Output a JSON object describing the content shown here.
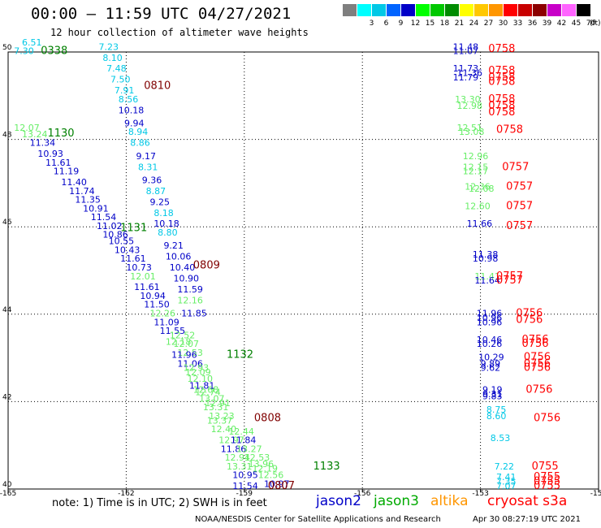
{
  "header": {
    "title": "00:00 – 11:59 UTC 04/27/2021",
    "subtitle": "12 hour collection of altimeter wave heights"
  },
  "colorbar": {
    "cells": [
      {
        "color": "#7f7f7f",
        "label": ""
      },
      {
        "color": "#00ffff",
        "label": "3"
      },
      {
        "color": "#00c8e6",
        "label": "6"
      },
      {
        "color": "#0064ff",
        "label": "9"
      },
      {
        "color": "#0000c8",
        "label": "12"
      },
      {
        "color": "#00ff00",
        "label": "15"
      },
      {
        "color": "#00c800",
        "label": "18"
      },
      {
        "color": "#008c00",
        "label": "21"
      },
      {
        "color": "#ffff00",
        "label": "24"
      },
      {
        "color": "#ffc800",
        "label": "27"
      },
      {
        "color": "#ff9600",
        "label": "30"
      },
      {
        "color": "#ff0000",
        "label": "33"
      },
      {
        "color": "#c80000",
        "label": "36"
      },
      {
        "color": "#8c0000",
        "label": "39"
      },
      {
        "color": "#c800c8",
        "label": "42"
      },
      {
        "color": "#ff64ff",
        "label": "45"
      },
      {
        "color": "#000000",
        "label": "70"
      }
    ],
    "unit": "(ft)"
  },
  "axes": {
    "x_ticks": [
      "-165",
      "-162",
      "-159",
      "-156",
      "-153",
      "-150"
    ],
    "y_ticks": [
      "50",
      "48",
      "46",
      "44",
      "42",
      "40"
    ],
    "x_range": [
      -165,
      -150
    ],
    "y_range": [
      40,
      50
    ]
  },
  "colors": {
    "c1": "#0000c8",
    "c2": "#00c8e6",
    "c3": "#66ee66",
    "time_green": "#008000",
    "time_dkred": "#800000",
    "time_red": "#ff0000"
  },
  "time_labels": [
    {
      "text": "0338",
      "lon": -164.17,
      "lat": 49.95,
      "color": "#008000"
    },
    {
      "text": "0810",
      "lon": -161.55,
      "lat": 49.15,
      "color": "#800000"
    },
    {
      "text": "1130",
      "lon": -164.0,
      "lat": 48.07,
      "color": "#008000"
    },
    {
      "text": "1131",
      "lon": -162.15,
      "lat": 45.9,
      "color": "#008000"
    },
    {
      "text": "0809",
      "lon": -160.3,
      "lat": 45.05,
      "color": "#800000"
    },
    {
      "text": "1132",
      "lon": -159.45,
      "lat": 43.0,
      "color": "#008000"
    },
    {
      "text": "0808",
      "lon": -158.75,
      "lat": 41.55,
      "color": "#800000"
    },
    {
      "text": "1133",
      "lon": -157.25,
      "lat": 40.45,
      "color": "#008000"
    },
    {
      "text": "0807",
      "lon": -158.4,
      "lat": 40.0,
      "color": "#800000"
    },
    {
      "text": "0758",
      "lon": -152.8,
      "lat": 50.0,
      "color": "#ff0000"
    },
    {
      "text": "0758",
      "lon": -152.8,
      "lat": 49.5,
      "color": "#ff0000"
    },
    {
      "text": "0758",
      "lon": -152.8,
      "lat": 49.35,
      "color": "#ff0000"
    },
    {
      "text": "0758",
      "lon": -152.8,
      "lat": 49.25,
      "color": "#ff0000"
    },
    {
      "text": "0758",
      "lon": -152.8,
      "lat": 48.85,
      "color": "#ff0000"
    },
    {
      "text": "0758",
      "lon": -152.8,
      "lat": 48.7,
      "color": "#ff0000"
    },
    {
      "text": "0758",
      "lon": -152.8,
      "lat": 48.55,
      "color": "#ff0000"
    },
    {
      "text": "0758",
      "lon": -152.6,
      "lat": 48.15,
      "color": "#ff0000"
    },
    {
      "text": "0757",
      "lon": -152.45,
      "lat": 47.3,
      "color": "#ff0000"
    },
    {
      "text": "0757",
      "lon": -152.35,
      "lat": 46.85,
      "color": "#ff0000"
    },
    {
      "text": "0757",
      "lon": -152.35,
      "lat": 46.4,
      "color": "#ff0000"
    },
    {
      "text": "0757",
      "lon": -152.35,
      "lat": 45.95,
      "color": "#ff0000"
    },
    {
      "text": "0757",
      "lon": -152.6,
      "lat": 44.8,
      "color": "#ff0000"
    },
    {
      "text": "0757",
      "lon": -152.6,
      "lat": 44.7,
      "color": "#ff0000"
    },
    {
      "text": "0756",
      "lon": -152.1,
      "lat": 43.95,
      "color": "#ff0000"
    },
    {
      "text": "0756",
      "lon": -152.1,
      "lat": 43.8,
      "color": "#ff0000"
    },
    {
      "text": "0756",
      "lon": -151.95,
      "lat": 43.35,
      "color": "#ff0000"
    },
    {
      "text": "0756",
      "lon": -151.95,
      "lat": 43.25,
      "color": "#ff0000"
    },
    {
      "text": "0756",
      "lon": -151.9,
      "lat": 42.95,
      "color": "#ff0000"
    },
    {
      "text": "0756",
      "lon": -151.9,
      "lat": 42.8,
      "color": "#ff0000"
    },
    {
      "text": "0756",
      "lon": -151.9,
      "lat": 42.7,
      "color": "#ff0000"
    },
    {
      "text": "0756",
      "lon": -151.85,
      "lat": 42.2,
      "color": "#ff0000"
    },
    {
      "text": "0756",
      "lon": -151.65,
      "lat": 41.55,
      "color": "#ff0000"
    },
    {
      "text": "0755",
      "lon": -151.7,
      "lat": 40.45,
      "color": "#ff0000"
    },
    {
      "text": "0755",
      "lon": -151.65,
      "lat": 40.2,
      "color": "#ff0000"
    },
    {
      "text": "0755",
      "lon": -151.65,
      "lat": 40.1,
      "color": "#ff0000"
    },
    {
      "text": "0755",
      "lon": -151.65,
      "lat": 40.0,
      "color": "#ff0000"
    }
  ],
  "wave_labels": [
    {
      "text": "6.51",
      "lon": -164.65,
      "lat": 50.15,
      "color": "#00c8e6"
    },
    {
      "text": "7.30",
      "lon": -164.85,
      "lat": 49.95,
      "color": "#00c8e6"
    },
    {
      "text": "7.23",
      "lon": -162.7,
      "lat": 50.05,
      "color": "#00c8e6"
    },
    {
      "text": "8.10",
      "lon": -162.6,
      "lat": 49.8,
      "color": "#00c8e6"
    },
    {
      "text": "7.48",
      "lon": -162.5,
      "lat": 49.55,
      "color": "#00c8e6"
    },
    {
      "text": "7.50",
      "lon": -162.4,
      "lat": 49.3,
      "color": "#00c8e6"
    },
    {
      "text": "7.91",
      "lon": -162.3,
      "lat": 49.05,
      "color": "#00c8e6"
    },
    {
      "text": "8.56",
      "lon": -162.2,
      "lat": 48.85,
      "color": "#00c8e6"
    },
    {
      "text": "10.18",
      "lon": -162.2,
      "lat": 48.6,
      "color": "#0000c8"
    },
    {
      "text": "9.94",
      "lon": -162.05,
      "lat": 48.3,
      "color": "#0000c8"
    },
    {
      "text": "8.94",
      "lon": -161.95,
      "lat": 48.1,
      "color": "#00c8e6"
    },
    {
      "text": "8.86",
      "lon": -161.9,
      "lat": 47.85,
      "color": "#00c8e6"
    },
    {
      "text": "9.17",
      "lon": -161.75,
      "lat": 47.55,
      "color": "#0000c8"
    },
    {
      "text": "8.31",
      "lon": -161.7,
      "lat": 47.3,
      "color": "#00c8e6"
    },
    {
      "text": "9.36",
      "lon": -161.6,
      "lat": 47.0,
      "color": "#0000c8"
    },
    {
      "text": "8.87",
      "lon": -161.5,
      "lat": 46.75,
      "color": "#00c8e6"
    },
    {
      "text": "9.25",
      "lon": -161.4,
      "lat": 46.5,
      "color": "#0000c8"
    },
    {
      "text": "8.18",
      "lon": -161.3,
      "lat": 46.25,
      "color": "#00c8e6"
    },
    {
      "text": "10.18",
      "lon": -161.3,
      "lat": 46.0,
      "color": "#0000c8"
    },
    {
      "text": "8.80",
      "lon": -161.2,
      "lat": 45.8,
      "color": "#00c8e6"
    },
    {
      "text": "9.21",
      "lon": -161.05,
      "lat": 45.5,
      "color": "#0000c8"
    },
    {
      "text": "10.06",
      "lon": -161.0,
      "lat": 45.25,
      "color": "#0000c8"
    },
    {
      "text": "10.40",
      "lon": -160.9,
      "lat": 45.0,
      "color": "#0000c8"
    },
    {
      "text": "10.90",
      "lon": -160.8,
      "lat": 44.75,
      "color": "#0000c8"
    },
    {
      "text": "11.59",
      "lon": -160.7,
      "lat": 44.5,
      "color": "#0000c8"
    },
    {
      "text": "12.16",
      "lon": -160.7,
      "lat": 44.25,
      "color": "#66ee66"
    },
    {
      "text": "11.85",
      "lon": -160.6,
      "lat": 43.95,
      "color": "#0000c8"
    },
    {
      "text": "12.07",
      "lon": -164.85,
      "lat": 48.2,
      "color": "#66ee66"
    },
    {
      "text": "13.24",
      "lon": -164.65,
      "lat": 48.05,
      "color": "#66ee66"
    },
    {
      "text": "11.34",
      "lon": -164.45,
      "lat": 47.85,
      "color": "#0000c8"
    },
    {
      "text": "10.93",
      "lon": -164.25,
      "lat": 47.6,
      "color": "#0000c8"
    },
    {
      "text": "11.61",
      "lon": -164.05,
      "lat": 47.4,
      "color": "#0000c8"
    },
    {
      "text": "11.19",
      "lon": -163.85,
      "lat": 47.2,
      "color": "#0000c8"
    },
    {
      "text": "11.40",
      "lon": -163.65,
      "lat": 46.95,
      "color": "#0000c8"
    },
    {
      "text": "11.74",
      "lon": -163.45,
      "lat": 46.75,
      "color": "#0000c8"
    },
    {
      "text": "11.35",
      "lon": -163.3,
      "lat": 46.55,
      "color": "#0000c8"
    },
    {
      "text": "10.91",
      "lon": -163.1,
      "lat": 46.35,
      "color": "#0000c8"
    },
    {
      "text": "11.54",
      "lon": -162.9,
      "lat": 46.15,
      "color": "#0000c8"
    },
    {
      "text": "11.02",
      "lon": -162.75,
      "lat": 45.95,
      "color": "#0000c8"
    },
    {
      "text": "10.86",
      "lon": -162.6,
      "lat": 45.75,
      "color": "#0000c8"
    },
    {
      "text": "10.55",
      "lon": -162.45,
      "lat": 45.6,
      "color": "#0000c8"
    },
    {
      "text": "10.43",
      "lon": -162.3,
      "lat": 45.4,
      "color": "#0000c8"
    },
    {
      "text": "11.61",
      "lon": -162.15,
      "lat": 45.2,
      "color": "#0000c8"
    },
    {
      "text": "10.73",
      "lon": -162.0,
      "lat": 45.0,
      "color": "#0000c8"
    },
    {
      "text": "12.01",
      "lon": -161.9,
      "lat": 44.8,
      "color": "#66ee66"
    },
    {
      "text": "11.61",
      "lon": -161.8,
      "lat": 44.55,
      "color": "#0000c8"
    },
    {
      "text": "10.94",
      "lon": -161.65,
      "lat": 44.35,
      "color": "#0000c8"
    },
    {
      "text": "11.50",
      "lon": -161.55,
      "lat": 44.15,
      "color": "#0000c8"
    },
    {
      "text": "12.26",
      "lon": -161.4,
      "lat": 43.95,
      "color": "#66ee66"
    },
    {
      "text": "11.09",
      "lon": -161.3,
      "lat": 43.75,
      "color": "#0000c8"
    },
    {
      "text": "11.55",
      "lon": -161.15,
      "lat": 43.55,
      "color": "#0000c8"
    },
    {
      "text": "12.52",
      "lon": -160.9,
      "lat": 43.45,
      "color": "#66ee66"
    },
    {
      "text": "12.18",
      "lon": -161.0,
      "lat": 43.3,
      "color": "#66ee66"
    },
    {
      "text": "12.07",
      "lon": -160.8,
      "lat": 43.25,
      "color": "#66ee66"
    },
    {
      "text": "12.53",
      "lon": -160.7,
      "lat": 43.05,
      "color": "#66ee66"
    },
    {
      "text": "11.96",
      "lon": -160.85,
      "lat": 43.0,
      "color": "#0000c8"
    },
    {
      "text": "11.06",
      "lon": -160.7,
      "lat": 42.8,
      "color": "#0000c8"
    },
    {
      "text": "12.93",
      "lon": -160.55,
      "lat": 42.7,
      "color": "#66ee66"
    },
    {
      "text": "12.09",
      "lon": -160.5,
      "lat": 42.6,
      "color": "#66ee66"
    },
    {
      "text": "12.10",
      "lon": -160.45,
      "lat": 42.45,
      "color": "#66ee66"
    },
    {
      "text": "11.81",
      "lon": -160.4,
      "lat": 42.3,
      "color": "#0000c8"
    },
    {
      "text": "12.68",
      "lon": -160.3,
      "lat": 42.2,
      "color": "#66ee66"
    },
    {
      "text": "12.74",
      "lon": -160.25,
      "lat": 42.15,
      "color": "#66ee66"
    },
    {
      "text": "13.07",
      "lon": -160.15,
      "lat": 42.0,
      "color": "#66ee66"
    },
    {
      "text": "12.91",
      "lon": -160.0,
      "lat": 41.9,
      "color": "#66ee66"
    },
    {
      "text": "13.31",
      "lon": -160.05,
      "lat": 41.8,
      "color": "#66ee66"
    },
    {
      "text": "13.23",
      "lon": -159.9,
      "lat": 41.6,
      "color": "#66ee66"
    },
    {
      "text": "13.37",
      "lon": -159.95,
      "lat": 41.5,
      "color": "#66ee66"
    },
    {
      "text": "12.40",
      "lon": -159.85,
      "lat": 41.3,
      "color": "#66ee66"
    },
    {
      "text": "12.44",
      "lon": -159.4,
      "lat": 41.25,
      "color": "#66ee66"
    },
    {
      "text": "12.97",
      "lon": -159.65,
      "lat": 41.05,
      "color": "#66ee66"
    },
    {
      "text": "11.84",
      "lon": -159.35,
      "lat": 41.05,
      "color": "#0000c8"
    },
    {
      "text": "11.86",
      "lon": -159.6,
      "lat": 40.85,
      "color": "#0000c8"
    },
    {
      "text": "13.27",
      "lon": -159.2,
      "lat": 40.85,
      "color": "#66ee66"
    },
    {
      "text": "12.94",
      "lon": -159.5,
      "lat": 40.65,
      "color": "#66ee66"
    },
    {
      "text": "12.53",
      "lon": -159.0,
      "lat": 40.65,
      "color": "#66ee66"
    },
    {
      "text": "13.31",
      "lon": -159.45,
      "lat": 40.45,
      "color": "#66ee66"
    },
    {
      "text": "13.96",
      "lon": -158.9,
      "lat": 40.5,
      "color": "#66ee66"
    },
    {
      "text": "12.19",
      "lon": -158.8,
      "lat": 40.4,
      "color": "#66ee66"
    },
    {
      "text": "10.95",
      "lon": -159.3,
      "lat": 40.25,
      "color": "#0000c8"
    },
    {
      "text": "12.56",
      "lon": -158.65,
      "lat": 40.25,
      "color": "#66ee66"
    },
    {
      "text": "11.54",
      "lon": -159.3,
      "lat": 40.0,
      "color": "#0000c8"
    },
    {
      "text": "10.97",
      "lon": -158.5,
      "lat": 40.05,
      "color": "#0000c8"
    },
    {
      "text": "11.48",
      "lon": -153.7,
      "lat": 50.05,
      "color": "#0000c8"
    },
    {
      "text": "11.07",
      "lon": -153.7,
      "lat": 49.95,
      "color": "#0000c8"
    },
    {
      "text": "11.73",
      "lon": -153.7,
      "lat": 49.55,
      "color": "#0000c8"
    },
    {
      "text": "11.36",
      "lon": -153.6,
      "lat": 49.45,
      "color": "#0000c8"
    },
    {
      "text": "11.79",
      "lon": -153.7,
      "lat": 49.35,
      "color": "#0000c8"
    },
    {
      "text": "13.30",
      "lon": -153.65,
      "lat": 48.85,
      "color": "#66ee66"
    },
    {
      "text": "12.98",
      "lon": -153.6,
      "lat": 48.7,
      "color": "#66ee66"
    },
    {
      "text": "12.51",
      "lon": -153.6,
      "lat": 48.2,
      "color": "#66ee66"
    },
    {
      "text": "13.08",
      "lon": -153.55,
      "lat": 48.1,
      "color": "#66ee66"
    },
    {
      "text": "12.96",
      "lon": -153.45,
      "lat": 47.55,
      "color": "#66ee66"
    },
    {
      "text": "12.15",
      "lon": -153.45,
      "lat": 47.3,
      "color": "#66ee66"
    },
    {
      "text": "12.17",
      "lon": -153.45,
      "lat": 47.2,
      "color": "#66ee66"
    },
    {
      "text": "12.36",
      "lon": -153.4,
      "lat": 46.85,
      "color": "#66ee66"
    },
    {
      "text": "12.08",
      "lon": -153.3,
      "lat": 46.8,
      "color": "#66ee66"
    },
    {
      "text": "12.60",
      "lon": -153.4,
      "lat": 46.4,
      "color": "#66ee66"
    },
    {
      "text": "11.66",
      "lon": -153.35,
      "lat": 46.0,
      "color": "#0000c8"
    },
    {
      "text": "11.38",
      "lon": -153.2,
      "lat": 45.3,
      "color": "#0000c8"
    },
    {
      "text": "10.98",
      "lon": -153.2,
      "lat": 45.2,
      "color": "#0000c8"
    },
    {
      "text": "11.41",
      "lon": -153.15,
      "lat": 44.8,
      "color": "#66ee66"
    },
    {
      "text": "11.64",
      "lon": -153.15,
      "lat": 44.7,
      "color": "#0000c8"
    },
    {
      "text": "11.96",
      "lon": -153.1,
      "lat": 43.95,
      "color": "#0000c8"
    },
    {
      "text": "10.96",
      "lon": -153.1,
      "lat": 43.85,
      "color": "#0000c8"
    },
    {
      "text": "10.96",
      "lon": -153.1,
      "lat": 43.75,
      "color": "#0000c8"
    },
    {
      "text": "10.46",
      "lon": -153.1,
      "lat": 43.35,
      "color": "#0000c8"
    },
    {
      "text": "10.26",
      "lon": -153.1,
      "lat": 43.25,
      "color": "#0000c8"
    },
    {
      "text": "10.29",
      "lon": -153.05,
      "lat": 42.95,
      "color": "#0000c8"
    },
    {
      "text": "9.89",
      "lon": -153.0,
      "lat": 42.8,
      "color": "#0000c8"
    },
    {
      "text": "9.62",
      "lon": -153.0,
      "lat": 42.7,
      "color": "#0000c8"
    },
    {
      "text": "9.19",
      "lon": -152.95,
      "lat": 42.2,
      "color": "#0000c8"
    },
    {
      "text": "9.31",
      "lon": -152.95,
      "lat": 42.1,
      "color": "#0000c8"
    },
    {
      "text": "9.83",
      "lon": -152.95,
      "lat": 42.05,
      "color": "#0000c8"
    },
    {
      "text": "8.75",
      "lon": -152.85,
      "lat": 41.75,
      "color": "#00c8e6"
    },
    {
      "text": "8.60",
      "lon": -152.85,
      "lat": 41.6,
      "color": "#00c8e6"
    },
    {
      "text": "8.53",
      "lon": -152.75,
      "lat": 41.1,
      "color": "#00c8e6"
    },
    {
      "text": "7.22",
      "lon": -152.65,
      "lat": 40.45,
      "color": "#00c8e6"
    },
    {
      "text": "7.41",
      "lon": -152.6,
      "lat": 40.2,
      "color": "#00c8e6"
    },
    {
      "text": "7.35",
      "lon": -152.6,
      "lat": 40.1,
      "color": "#00c8e6"
    },
    {
      "text": "7.07",
      "lon": -152.6,
      "lat": 40.0,
      "color": "#00c8e6"
    }
  ],
  "footer": {
    "note": "note:  1) Time is in UTC;  2) SWH is in feet",
    "legend": [
      {
        "text": "jason2",
        "color": "#0000c8"
      },
      {
        "text": "jason3",
        "color": "#00aa00"
      },
      {
        "text": "altika",
        "color": "#ff9600"
      },
      {
        "text": "cryosat s3a",
        "color": "#ff0000"
      }
    ],
    "credit": "NOAA/NESDIS Center for Satellite Applications and Research",
    "timestamp": "Apr 30 08:27:19 UTC 2021"
  }
}
